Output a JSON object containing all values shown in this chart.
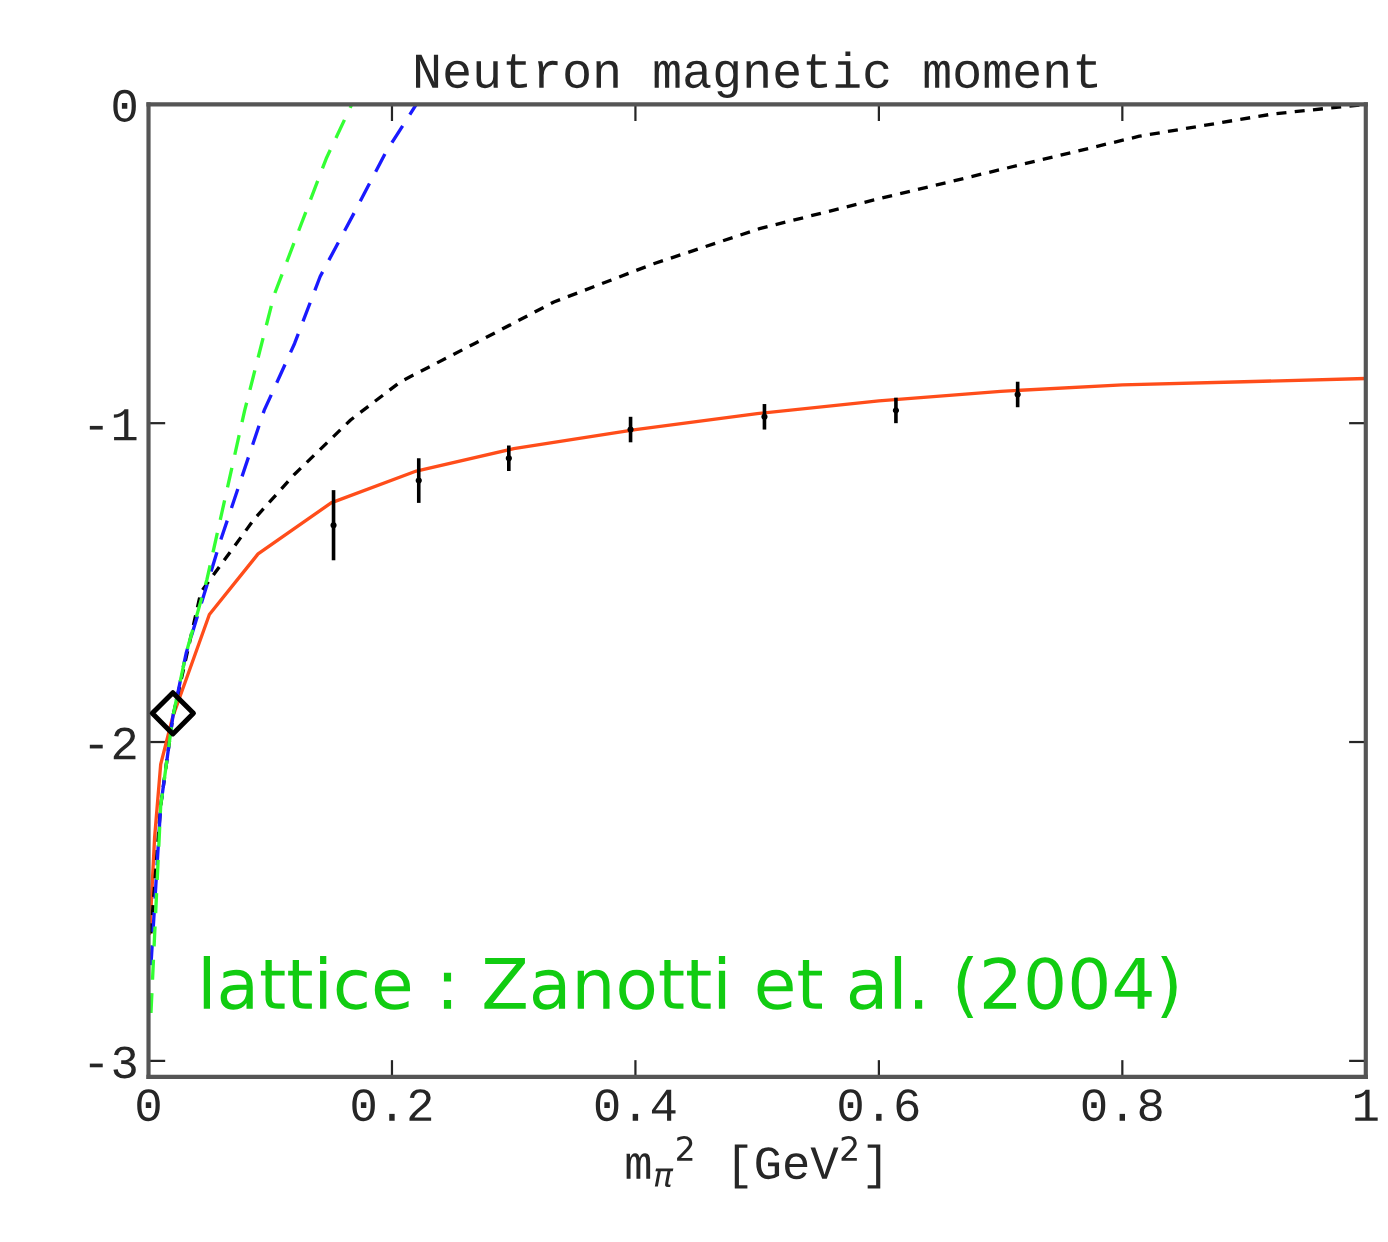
{
  "chart_data": {
    "type": "line",
    "title": "Neutron magnetic moment",
    "xlabel": "m$_{π}$$^{2}$ [GeV$^{2}$]",
    "annotations": [
      "lattice : Zanotti et al. (2004)"
    ],
    "xlim": [
      0,
      1
    ],
    "ylim": [
      -3.05,
      0
    ],
    "xticks": [
      0,
      0.2,
      0.4,
      0.6,
      0.8,
      1
    ],
    "yticks": [
      -3,
      -2,
      -1,
      0
    ],
    "grid": false,
    "series": [
      {
        "color": "#ff4d1a",
        "line_style": "solid",
        "x": [
          0.001,
          0.005,
          0.01,
          0.02,
          0.05,
          0.09,
          0.15,
          0.22,
          0.3,
          0.4,
          0.5,
          0.6,
          0.7,
          0.8,
          0.9,
          1.0
        ],
        "values": [
          -2.6,
          -2.3,
          -2.07,
          -1.92,
          -1.6,
          -1.41,
          -1.25,
          -1.15,
          -1.08,
          -1.02,
          -0.97,
          -0.93,
          -0.9,
          -0.88,
          -0.87,
          -0.86
        ]
      },
      {
        "color": "#000000",
        "line_style": "dotted",
        "x": [
          0.002,
          0.01,
          0.02,
          0.043,
          0.087,
          0.12,
          0.166,
          0.207,
          0.268,
          0.333,
          0.415,
          0.502,
          0.596,
          0.705,
          0.814,
          0.924,
          1.0
        ],
        "values": [
          -2.6,
          -2.2,
          -1.92,
          -1.53,
          -1.3,
          -1.16,
          -0.99,
          -0.87,
          -0.75,
          -0.62,
          -0.5,
          -0.39,
          -0.3,
          -0.2,
          -0.1,
          -0.03,
          0.0
        ]
      },
      {
        "color": "#1a1aff",
        "line_style": "dashed",
        "x": [
          0.002,
          0.01,
          0.02,
          0.031,
          0.059,
          0.095,
          0.12,
          0.141,
          0.169,
          0.195,
          0.22
        ],
        "values": [
          -2.7,
          -2.2,
          -1.92,
          -1.72,
          -1.37,
          -0.96,
          -0.75,
          -0.54,
          -0.34,
          -0.15,
          0.0
        ]
      },
      {
        "color": "#33ff33",
        "line_style": "dashed",
        "x": [
          0.002,
          0.01,
          0.02,
          0.031,
          0.048,
          0.079,
          0.103,
          0.125,
          0.146,
          0.167
        ],
        "values": [
          -2.85,
          -2.2,
          -1.92,
          -1.72,
          -1.49,
          -0.96,
          -0.6,
          -0.38,
          -0.17,
          0.0
        ]
      },
      {
        "type": "scatter",
        "color": "#000000",
        "x": [
          0.152,
          0.222,
          0.296,
          0.396,
          0.506,
          0.614,
          0.714
        ],
        "values": [
          -1.32,
          -1.18,
          -1.11,
          -1.02,
          -0.98,
          -0.96,
          -0.91
        ],
        "errors": [
          0.11,
          0.07,
          0.04,
          0.04,
          0.04,
          0.04,
          0.04
        ]
      },
      {
        "type": "scatter",
        "marker": "diamond",
        "color": "#000000",
        "x": [
          0.02
        ],
        "values": [
          -1.91
        ]
      }
    ]
  }
}
